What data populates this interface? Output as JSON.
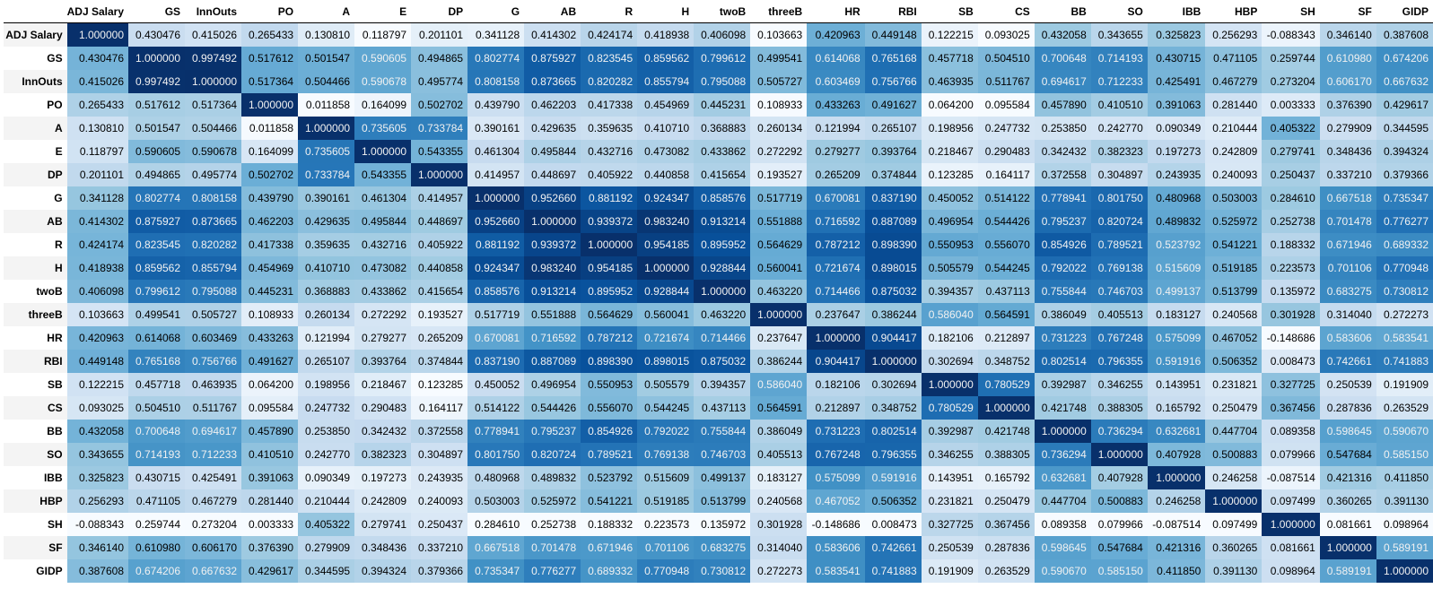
{
  "chart_data": {
    "type": "heatmap",
    "title": "",
    "columns": [
      "ADJ Salary",
      "GS",
      "InnOuts",
      "PO",
      "A",
      "E",
      "DP",
      "G",
      "AB",
      "R",
      "H",
      "twoB",
      "threeB",
      "HR",
      "RBI",
      "SB",
      "CS",
      "BB",
      "SO",
      "IBB",
      "HBP",
      "SH",
      "SF",
      "GIDP"
    ],
    "rows": [
      "ADJ Salary",
      "GS",
      "InnOuts",
      "PO",
      "A",
      "E",
      "DP",
      "G",
      "AB",
      "R",
      "H",
      "twoB",
      "threeB",
      "HR",
      "RBI",
      "SB",
      "CS",
      "BB",
      "SO",
      "IBB",
      "HBP",
      "SH",
      "SF",
      "GIDP"
    ],
    "cells": [
      [
        "1.000000",
        "0.430476",
        "0.415026",
        "0.265433",
        "0.130810",
        "0.118797",
        "0.201101",
        "0.341128",
        "0.414302",
        "0.424174",
        "0.418938",
        "0.406098",
        "0.103663",
        "0.420963",
        "0.449148",
        "0.122215",
        "0.093025",
        "0.432058",
        "0.343655",
        "0.325823",
        "0.256293",
        "-0.088343",
        "0.346140",
        "0.387608"
      ],
      [
        "0.430476",
        "1.000000",
        "0.997492",
        "0.517612",
        "0.501547",
        "0.590605",
        "0.494865",
        "0.802774",
        "0.875927",
        "0.823545",
        "0.859562",
        "0.799612",
        "0.499541",
        "0.614068",
        "0.765168",
        "0.457718",
        "0.504510",
        "0.700648",
        "0.714193",
        "0.430715",
        "0.471105",
        "0.259744",
        "0.610980",
        "0.674206"
      ],
      [
        "0.415026",
        "0.997492",
        "1.000000",
        "0.517364",
        "0.504466",
        "0.590678",
        "0.495774",
        "0.808158",
        "0.873665",
        "0.820282",
        "0.855794",
        "0.795088",
        "0.505727",
        "0.603469",
        "0.756766",
        "0.463935",
        "0.511767",
        "0.694617",
        "0.712233",
        "0.425491",
        "0.467279",
        "0.273204",
        "0.606170",
        "0.667632"
      ],
      [
        "0.265433",
        "0.517612",
        "0.517364",
        "1.000000",
        "0.011858",
        "0.164099",
        "0.502702",
        "0.439790",
        "0.462203",
        "0.417338",
        "0.454969",
        "0.445231",
        "0.108933",
        "0.433263",
        "0.491627",
        "0.064200",
        "0.095584",
        "0.457890",
        "0.410510",
        "0.391063",
        "0.281440",
        "0.003333",
        "0.376390",
        "0.429617"
      ],
      [
        "0.130810",
        "0.501547",
        "0.504466",
        "0.011858",
        "1.000000",
        "0.735605",
        "0.733784",
        "0.390161",
        "0.429635",
        "0.359635",
        "0.410710",
        "0.368883",
        "0.260134",
        "0.121994",
        "0.265107",
        "0.198956",
        "0.247732",
        "0.253850",
        "0.242770",
        "0.090349",
        "0.210444",
        "0.405322",
        "0.279909",
        "0.344595"
      ],
      [
        "0.118797",
        "0.590605",
        "0.590678",
        "0.164099",
        "0.735605",
        "1.000000",
        "0.543355",
        "0.461304",
        "0.495844",
        "0.432716",
        "0.473082",
        "0.433862",
        "0.272292",
        "0.279277",
        "0.393764",
        "0.218467",
        "0.290483",
        "0.342432",
        "0.382323",
        "0.197273",
        "0.242809",
        "0.279741",
        "0.348436",
        "0.394324"
      ],
      [
        "0.201101",
        "0.494865",
        "0.495774",
        "0.502702",
        "0.733784",
        "0.543355",
        "1.000000",
        "0.414957",
        "0.448697",
        "0.405922",
        "0.440858",
        "0.415654",
        "0.193527",
        "0.265209",
        "0.374844",
        "0.123285",
        "0.164117",
        "0.372558",
        "0.304897",
        "0.243935",
        "0.240093",
        "0.250437",
        "0.337210",
        "0.379366"
      ],
      [
        "0.341128",
        "0.802774",
        "0.808158",
        "0.439790",
        "0.390161",
        "0.461304",
        "0.414957",
        "1.000000",
        "0.952660",
        "0.881192",
        "0.924347",
        "0.858576",
        "0.517719",
        "0.670081",
        "0.837190",
        "0.450052",
        "0.514122",
        "0.778941",
        "0.801750",
        "0.480968",
        "0.503003",
        "0.284610",
        "0.667518",
        "0.735347"
      ],
      [
        "0.414302",
        "0.875927",
        "0.873665",
        "0.462203",
        "0.429635",
        "0.495844",
        "0.448697",
        "0.952660",
        "1.000000",
        "0.939372",
        "0.983240",
        "0.913214",
        "0.551888",
        "0.716592",
        "0.887089",
        "0.496954",
        "0.544426",
        "0.795237",
        "0.820724",
        "0.489832",
        "0.525972",
        "0.252738",
        "0.701478",
        "0.776277"
      ],
      [
        "0.424174",
        "0.823545",
        "0.820282",
        "0.417338",
        "0.359635",
        "0.432716",
        "0.405922",
        "0.881192",
        "0.939372",
        "1.000000",
        "0.954185",
        "0.895952",
        "0.564629",
        "0.787212",
        "0.898390",
        "0.550953",
        "0.556070",
        "0.854926",
        "0.789521",
        "0.523792",
        "0.541221",
        "0.188332",
        "0.671946",
        "0.689332"
      ],
      [
        "0.418938",
        "0.859562",
        "0.855794",
        "0.454969",
        "0.410710",
        "0.473082",
        "0.440858",
        "0.924347",
        "0.983240",
        "0.954185",
        "1.000000",
        "0.928844",
        "0.560041",
        "0.721674",
        "0.898015",
        "0.505579",
        "0.544245",
        "0.792022",
        "0.769138",
        "0.515609",
        "0.519185",
        "0.223573",
        "0.701106",
        "0.770948"
      ],
      [
        "0.406098",
        "0.799612",
        "0.795088",
        "0.445231",
        "0.368883",
        "0.433862",
        "0.415654",
        "0.858576",
        "0.913214",
        "0.895952",
        "0.928844",
        "1.000000",
        "0.463220",
        "0.714466",
        "0.875032",
        "0.394357",
        "0.437113",
        "0.755844",
        "0.746703",
        "0.499137",
        "0.513799",
        "0.135972",
        "0.683275",
        "0.730812"
      ],
      [
        "0.103663",
        "0.499541",
        "0.505727",
        "0.108933",
        "0.260134",
        "0.272292",
        "0.193527",
        "0.517719",
        "0.551888",
        "0.564629",
        "0.560041",
        "0.463220",
        "1.000000",
        "0.237647",
        "0.386244",
        "0.586040",
        "0.564591",
        "0.386049",
        "0.405513",
        "0.183127",
        "0.240568",
        "0.301928",
        "0.314040",
        "0.272273"
      ],
      [
        "0.420963",
        "0.614068",
        "0.603469",
        "0.433263",
        "0.121994",
        "0.279277",
        "0.265209",
        "0.670081",
        "0.716592",
        "0.787212",
        "0.721674",
        "0.714466",
        "0.237647",
        "1.000000",
        "0.904417",
        "0.182106",
        "0.212897",
        "0.731223",
        "0.767248",
        "0.575099",
        "0.467052",
        "-0.148686",
        "0.583606",
        "0.583541"
      ],
      [
        "0.449148",
        "0.765168",
        "0.756766",
        "0.491627",
        "0.265107",
        "0.393764",
        "0.374844",
        "0.837190",
        "0.887089",
        "0.898390",
        "0.898015",
        "0.875032",
        "0.386244",
        "0.904417",
        "1.000000",
        "0.302694",
        "0.348752",
        "0.802514",
        "0.796355",
        "0.591916",
        "0.506352",
        "0.008473",
        "0.742661",
        "0.741883"
      ],
      [
        "0.122215",
        "0.457718",
        "0.463935",
        "0.064200",
        "0.198956",
        "0.218467",
        "0.123285",
        "0.450052",
        "0.496954",
        "0.550953",
        "0.505579",
        "0.394357",
        "0.586040",
        "0.182106",
        "0.302694",
        "1.000000",
        "0.780529",
        "0.392987",
        "0.346255",
        "0.143951",
        "0.231821",
        "0.327725",
        "0.250539",
        "0.191909"
      ],
      [
        "0.093025",
        "0.504510",
        "0.511767",
        "0.095584",
        "0.247732",
        "0.290483",
        "0.164117",
        "0.514122",
        "0.544426",
        "0.556070",
        "0.544245",
        "0.437113",
        "0.564591",
        "0.212897",
        "0.348752",
        "0.780529",
        "1.000000",
        "0.421748",
        "0.388305",
        "0.165792",
        "0.250479",
        "0.367456",
        "0.287836",
        "0.263529"
      ],
      [
        "0.432058",
        "0.700648",
        "0.694617",
        "0.457890",
        "0.253850",
        "0.342432",
        "0.372558",
        "0.778941",
        "0.795237",
        "0.854926",
        "0.792022",
        "0.755844",
        "0.386049",
        "0.731223",
        "0.802514",
        "0.392987",
        "0.421748",
        "1.000000",
        "0.736294",
        "0.632681",
        "0.447704",
        "0.089358",
        "0.598645",
        "0.590670"
      ],
      [
        "0.343655",
        "0.714193",
        "0.712233",
        "0.410510",
        "0.242770",
        "0.382323",
        "0.304897",
        "0.801750",
        "0.820724",
        "0.789521",
        "0.769138",
        "0.746703",
        "0.405513",
        "0.767248",
        "0.796355",
        "0.346255",
        "0.388305",
        "0.736294",
        "1.000000",
        "0.407928",
        "0.500883",
        "0.079966",
        "0.547684",
        "0.585150"
      ],
      [
        "0.325823",
        "0.430715",
        "0.425491",
        "0.391063",
        "0.090349",
        "0.197273",
        "0.243935",
        "0.480968",
        "0.489832",
        "0.523792",
        "0.515609",
        "0.499137",
        "0.183127",
        "0.575099",
        "0.591916",
        "0.143951",
        "0.165792",
        "0.632681",
        "0.407928",
        "1.000000",
        "0.246258",
        "-0.087514",
        "0.421316",
        "0.411850"
      ],
      [
        "0.256293",
        "0.471105",
        "0.467279",
        "0.281440",
        "0.210444",
        "0.242809",
        "0.240093",
        "0.503003",
        "0.525972",
        "0.541221",
        "0.519185",
        "0.513799",
        "0.240568",
        "0.467052",
        "0.506352",
        "0.231821",
        "0.250479",
        "0.447704",
        "0.500883",
        "0.246258",
        "1.000000",
        "0.097499",
        "0.360265",
        "0.391130"
      ],
      [
        "-0.088343",
        "0.259744",
        "0.273204",
        "0.003333",
        "0.405322",
        "0.279741",
        "0.250437",
        "0.284610",
        "0.252738",
        "0.188332",
        "0.223573",
        "0.135972",
        "0.301928",
        "-0.148686",
        "0.008473",
        "0.327725",
        "0.367456",
        "0.089358",
        "0.079966",
        "-0.087514",
        "0.097499",
        "1.000000",
        "0.081661",
        "0.098964"
      ],
      [
        "0.346140",
        "0.610980",
        "0.606170",
        "0.376390",
        "0.279909",
        "0.348436",
        "0.337210",
        "0.667518",
        "0.701478",
        "0.671946",
        "0.701106",
        "0.683275",
        "0.314040",
        "0.583606",
        "0.742661",
        "0.250539",
        "0.287836",
        "0.598645",
        "0.547684",
        "0.421316",
        "0.360265",
        "0.081661",
        "1.000000",
        "0.589191"
      ],
      [
        "0.387608",
        "0.674206",
        "0.667632",
        "0.429617",
        "0.344595",
        "0.394324",
        "0.379366",
        "0.735347",
        "0.776277",
        "0.689332",
        "0.770948",
        "0.730812",
        "0.272273",
        "0.583541",
        "0.741883",
        "0.191909",
        "0.263529",
        "0.590670",
        "0.585150",
        "0.411850",
        "0.391130",
        "0.098964",
        "0.589191",
        "1.000000"
      ]
    ],
    "colorscale": "Blues",
    "value_range_per_column": true
  }
}
